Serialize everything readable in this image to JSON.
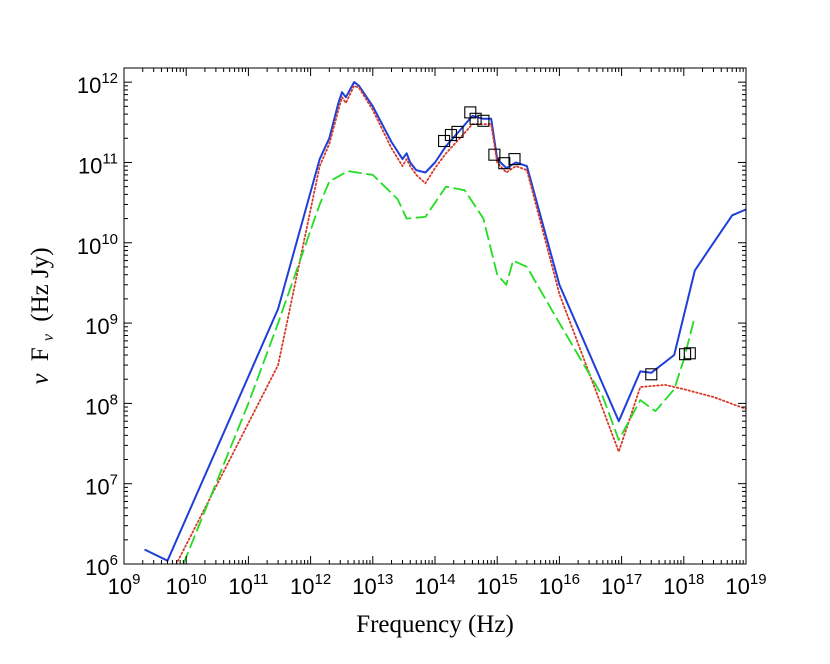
{
  "chart_data": {
    "type": "line",
    "title": "",
    "xlabel": "Frequency (Hz)",
    "ylabel_greek": "ν",
    "ylabel_F": "F",
    "ylabel_sub": "ν",
    "ylabel_rest": "(Hz Jy)",
    "xscale": "log",
    "yscale": "log",
    "xlim": [
      1000000000.0,
      1e+19
    ],
    "ylim": [
      1000000.0,
      1500000000000.0
    ],
    "x_tick_exponents": [
      9,
      10,
      11,
      12,
      13,
      14,
      15,
      16,
      17,
      18,
      19
    ],
    "y_tick_exponents": [
      6,
      7,
      8,
      9,
      10,
      11,
      12
    ],
    "tick_base": "10",
    "grid": false,
    "legend": "none",
    "series": [
      {
        "color": "#1f3fd8",
        "style": "solid",
        "x": [
          2200000000.0,
          5000000000.0,
          300000000000.0,
          1400000000000.0,
          2000000000000.0,
          2800000000000.0,
          3200000000000.0,
          3700000000000.0,
          5000000000000.0,
          6000000000000.0,
          10000000000000.0,
          20000000000000.0,
          30000000000000.0,
          35000000000000.0,
          40000000000000.0,
          50000000000000.0,
          70000000000000.0,
          100000000000000.0,
          150000000000000.0,
          250000000000000.0,
          400000000000000.0,
          600000000000000.0,
          800000000000000.0,
          1000000000000000.0,
          1400000000000000.0,
          2000000000000000.0,
          3000000000000000.0,
          1e+16,
          9e+16,
          2e+17,
          3e+17,
          7e+17,
          1.5e+18,
          3e+18,
          6e+18,
          1e+19
        ],
        "y": [
          1500000.0,
          1100000.0,
          1500000000.0,
          110000000000.0,
          200000000000.0,
          550000000000.0,
          750000000000.0,
          650000000000.0,
          1000000000000.0,
          900000000000.0,
          500000000000.0,
          180000000000.0,
          110000000000.0,
          130000000000.0,
          100000000000.0,
          80000000000.0,
          75000000000.0,
          100000000000.0,
          160000000000.0,
          250000000000.0,
          380000000000.0,
          350000000000.0,
          350000000000.0,
          110000000000.0,
          85000000000.0,
          100000000000.0,
          90000000000.0,
          3000000000.0,
          60000000.0,
          250000000.0,
          240000000.0,
          400000000.0,
          4500000000.0,
          10000000000.0,
          22000000000.0,
          26000000000.0
        ]
      },
      {
        "color": "#d83a2a",
        "style": "dotted",
        "x": [
          6000000000.0,
          300000000000.0,
          1400000000000.0,
          2000000000000.0,
          2800000000000.0,
          3200000000000.0,
          3700000000000.0,
          5000000000000.0,
          6000000000000.0,
          10000000000000.0,
          20000000000000.0,
          30000000000000.0,
          35000000000000.0,
          40000000000000.0,
          50000000000000.0,
          70000000000000.0,
          100000000000000.0,
          150000000000000.0,
          250000000000000.0,
          400000000000000.0,
          600000000000000.0,
          800000000000000.0,
          1000000000000000.0,
          1400000000000000.0,
          2000000000000000.0,
          3000000000000000.0,
          1e+16,
          9e+16,
          2e+17,
          5e+17,
          1e+18,
          3e+18,
          1e+19
        ],
        "y": [
          800000.0,
          300000000.0,
          90000000000.0,
          170000000000.0,
          450000000000.0,
          650000000000.0,
          550000000000.0,
          900000000000.0,
          850000000000.0,
          450000000000.0,
          150000000000.0,
          90000000000.0,
          110000000000.0,
          90000000000.0,
          70000000000.0,
          55000000000.0,
          85000000000.0,
          130000000000.0,
          200000000000.0,
          300000000000.0,
          300000000000.0,
          300000000000.0,
          100000000000.0,
          75000000000.0,
          90000000000.0,
          80000000000.0,
          2300000000.0,
          25000000.0,
          160000000.0,
          170000000.0,
          150000000.0,
          120000000.0,
          85000000.0
        ]
      },
      {
        "color": "#22dd22",
        "style": "dashed",
        "x": [
          9000000000.0,
          100000000000.0,
          300000000000.0,
          1400000000000.0,
          2000000000000.0,
          4000000000000.0,
          10000000000000.0,
          25000000000000.0,
          35000000000000.0,
          70000000000000.0,
          150000000000000.0,
          300000000000000.0,
          600000000000000.0,
          1000000000000000.0,
          1400000000000000.0,
          1800000000000000.0,
          3000000000000000.0,
          1e+16,
          5e+16,
          9e+16,
          2e+17,
          3.5e+17,
          7e+17,
          1e+18,
          1.5e+18
        ],
        "y": [
          1000000.0,
          100000000.0,
          1000000000.0,
          30000000000.0,
          58000000000.0,
          78000000000.0,
          70000000000.0,
          35000000000.0,
          20000000000.0,
          21000000000.0,
          50000000000.0,
          45000000000.0,
          20000000000.0,
          4000000000.0,
          3000000000.0,
          6000000000.0,
          5000000000.0,
          1000000000.0,
          120000000.0,
          35000000.0,
          110000000.0,
          80000000.0,
          150000000.0,
          350000000.0,
          1200000000.0
        ]
      }
    ],
    "markers": {
      "shape": "square",
      "color": "#000000",
      "points": [
        {
          "x": 140000000000000.0,
          "y": 185000000000.0
        },
        {
          "x": 180000000000000.0,
          "y": 220000000000.0
        },
        {
          "x": 230000000000000.0,
          "y": 240000000000.0
        },
        {
          "x": 370000000000000.0,
          "y": 420000000000.0
        },
        {
          "x": 450000000000000.0,
          "y": 350000000000.0
        },
        {
          "x": 600000000000000.0,
          "y": 330000000000.0
        },
        {
          "x": 900000000000000.0,
          "y": 125000000000.0
        },
        {
          "x": 1300000000000000.0,
          "y": 98000000000.0
        },
        {
          "x": 1900000000000000.0,
          "y": 110000000000.0
        },
        {
          "x": 3e+17,
          "y": 230000000.0
        },
        {
          "x": 1.05e+18,
          "y": 410000000.0
        },
        {
          "x": 1.25e+18,
          "y": 420000000.0
        }
      ]
    }
  }
}
